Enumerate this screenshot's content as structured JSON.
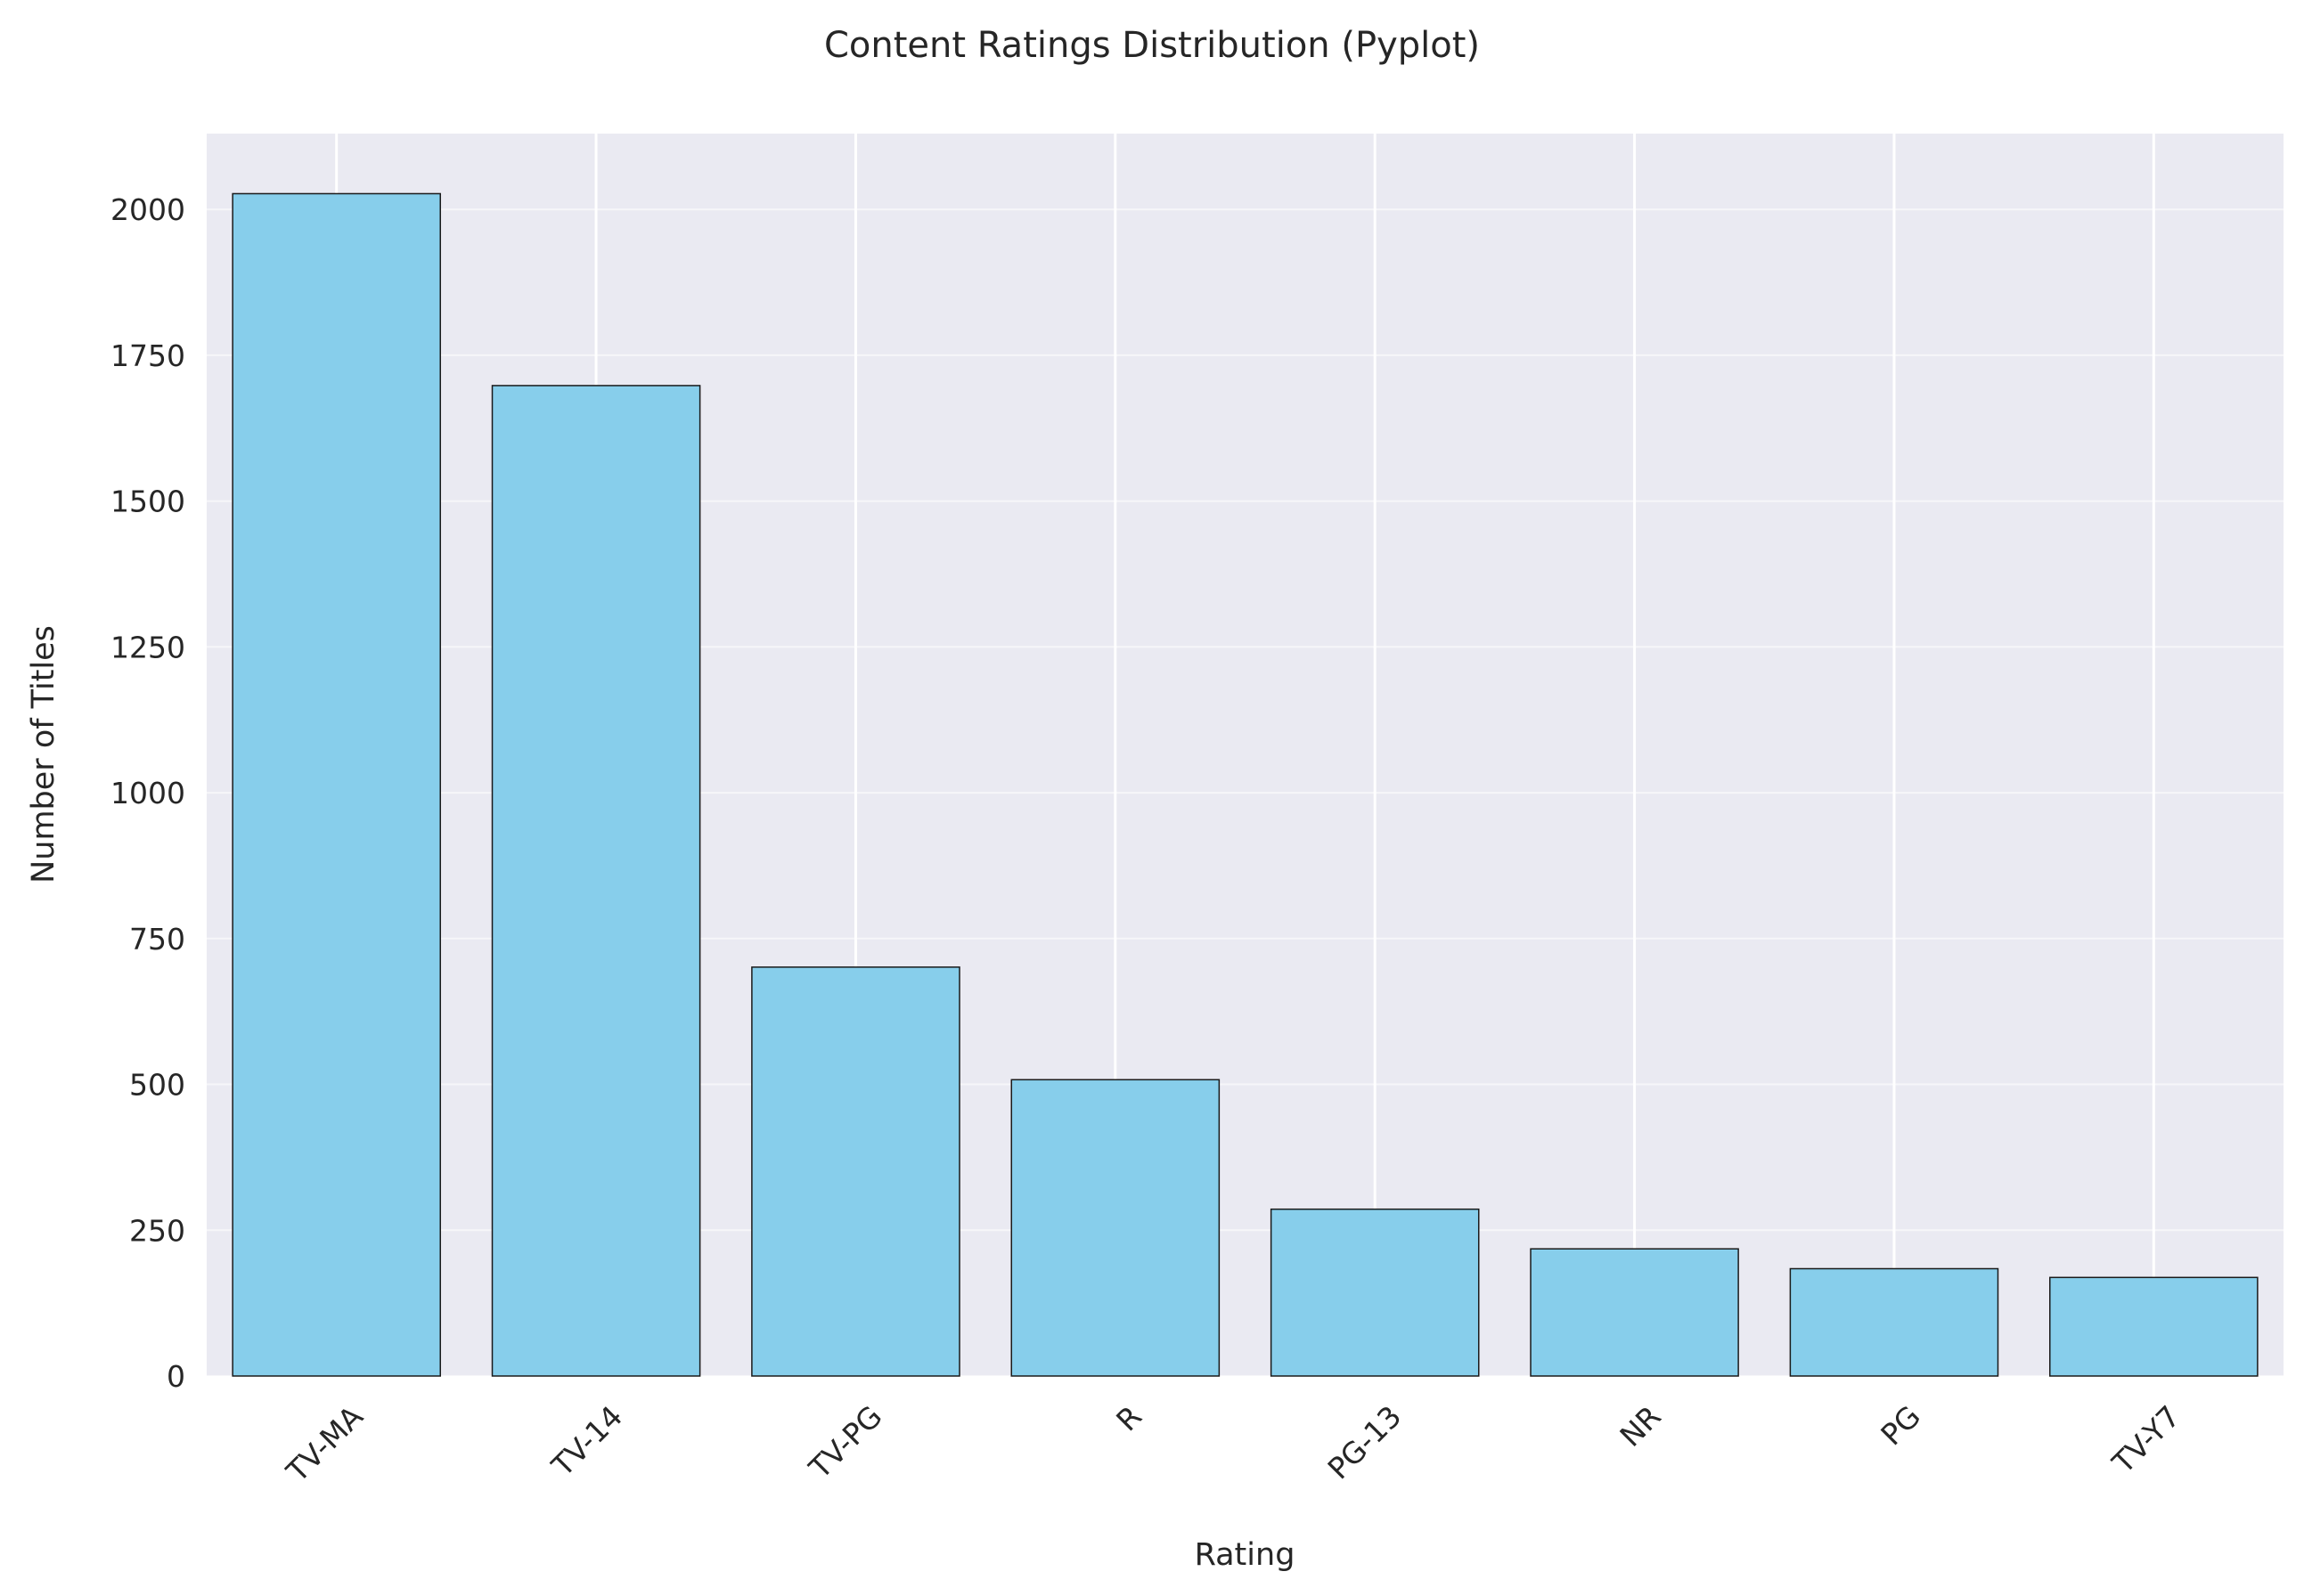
{
  "chart_data": {
    "type": "bar",
    "title": "Content Ratings Distribution (Pyplot)",
    "xlabel": "Rating",
    "ylabel": "Number of Titles",
    "categories": [
      "TV-MA",
      "TV-14",
      "TV-PG",
      "R",
      "PG-13",
      "NR",
      "PG",
      "TV-Y7"
    ],
    "values": [
      2027,
      1698,
      701,
      508,
      286,
      218,
      184,
      169
    ],
    "ylim": [
      0,
      2130
    ],
    "yticks": [
      0,
      250,
      500,
      750,
      1000,
      1250,
      1500,
      1750,
      2000
    ],
    "ytick_labels": [
      "0",
      "250",
      "500",
      "750",
      "1000",
      "1250",
      "1500",
      "1750",
      "2000"
    ],
    "x_tick_rotation": 45,
    "grid": true,
    "legend": "none",
    "colors": {
      "bar_fill": "#87ceeb",
      "bar_edge": "#1a1a1a",
      "plot_background": "#eaeaf2",
      "grid": "#ffffff",
      "text": "#262626"
    }
  }
}
